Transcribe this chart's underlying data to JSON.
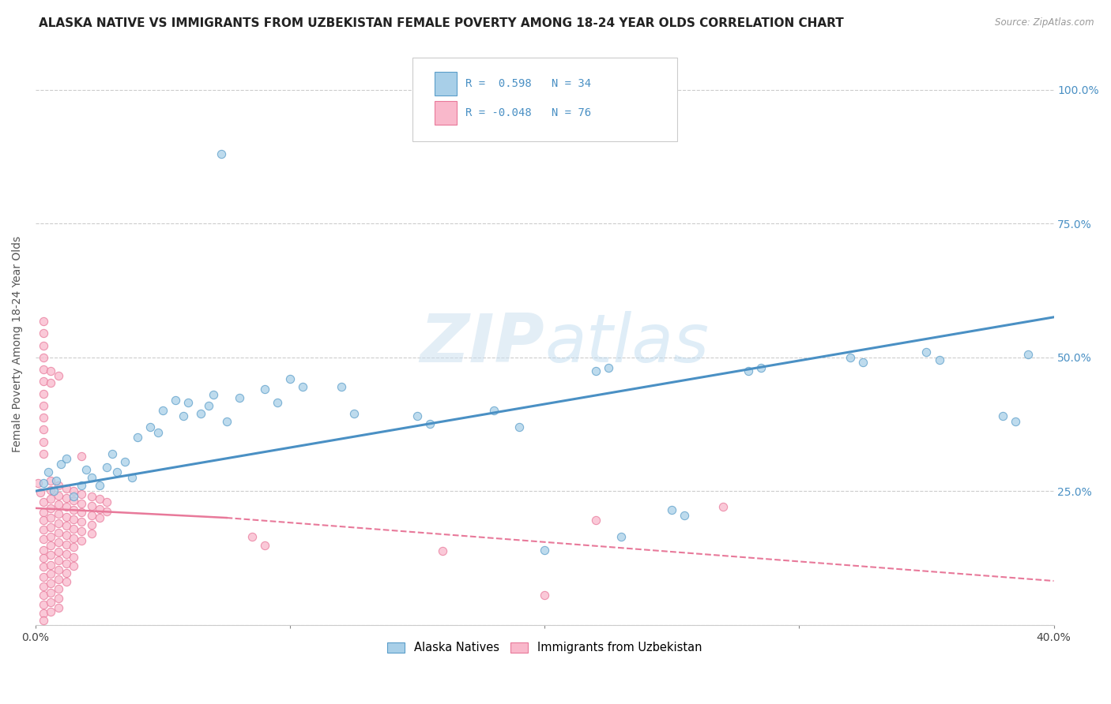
{
  "title": "ALASKA NATIVE VS IMMIGRANTS FROM UZBEKISTAN FEMALE POVERTY AMONG 18-24 YEAR OLDS CORRELATION CHART",
  "source": "Source: ZipAtlas.com",
  "ylabel": "Female Poverty Among 18-24 Year Olds",
  "xlim": [
    0.0,
    0.4
  ],
  "ylim": [
    0.0,
    1.05
  ],
  "yticks": [
    0.0,
    0.25,
    0.5,
    0.75,
    1.0
  ],
  "ytick_labels": [
    "",
    "25.0%",
    "50.0%",
    "75.0%",
    "100.0%"
  ],
  "xticks": [
    0.0,
    0.1,
    0.2,
    0.3,
    0.4
  ],
  "xtick_labels": [
    "0.0%",
    "",
    "",
    "",
    "40.0%"
  ],
  "legend_label1": "Alaska Natives",
  "legend_label2": "Immigrants from Uzbekistan",
  "color_blue": "#a8cfe8",
  "color_pink": "#f9b8cb",
  "color_blue_edge": "#5b9ec9",
  "color_pink_edge": "#e8799a",
  "color_blue_line": "#4a90c4",
  "color_pink_line": "#e8799a",
  "color_blue_text": "#4a90c4",
  "blue_scatter": [
    [
      0.003,
      0.265
    ],
    [
      0.005,
      0.285
    ],
    [
      0.007,
      0.25
    ],
    [
      0.008,
      0.27
    ],
    [
      0.01,
      0.3
    ],
    [
      0.012,
      0.31
    ],
    [
      0.015,
      0.24
    ],
    [
      0.018,
      0.26
    ],
    [
      0.02,
      0.29
    ],
    [
      0.022,
      0.275
    ],
    [
      0.025,
      0.26
    ],
    [
      0.028,
      0.295
    ],
    [
      0.03,
      0.32
    ],
    [
      0.032,
      0.285
    ],
    [
      0.035,
      0.305
    ],
    [
      0.038,
      0.275
    ],
    [
      0.04,
      0.35
    ],
    [
      0.045,
      0.37
    ],
    [
      0.048,
      0.36
    ],
    [
      0.05,
      0.4
    ],
    [
      0.055,
      0.42
    ],
    [
      0.058,
      0.39
    ],
    [
      0.06,
      0.415
    ],
    [
      0.065,
      0.395
    ],
    [
      0.068,
      0.41
    ],
    [
      0.07,
      0.43
    ],
    [
      0.075,
      0.38
    ],
    [
      0.08,
      0.425
    ],
    [
      0.09,
      0.44
    ],
    [
      0.095,
      0.415
    ],
    [
      0.1,
      0.46
    ],
    [
      0.105,
      0.445
    ],
    [
      0.12,
      0.445
    ],
    [
      0.125,
      0.395
    ],
    [
      0.15,
      0.39
    ],
    [
      0.155,
      0.375
    ],
    [
      0.18,
      0.4
    ],
    [
      0.19,
      0.37
    ],
    [
      0.22,
      0.475
    ],
    [
      0.225,
      0.48
    ],
    [
      0.25,
      0.215
    ],
    [
      0.255,
      0.205
    ],
    [
      0.28,
      0.475
    ],
    [
      0.285,
      0.48
    ],
    [
      0.32,
      0.5
    ],
    [
      0.325,
      0.49
    ],
    [
      0.35,
      0.51
    ],
    [
      0.355,
      0.495
    ],
    [
      0.38,
      0.39
    ],
    [
      0.385,
      0.38
    ],
    [
      0.39,
      0.505
    ],
    [
      0.073,
      0.88
    ],
    [
      0.2,
      0.14
    ],
    [
      0.23,
      0.165
    ]
  ],
  "pink_scatter": [
    [
      0.001,
      0.265
    ],
    [
      0.002,
      0.248
    ],
    [
      0.003,
      0.23
    ],
    [
      0.003,
      0.21
    ],
    [
      0.003,
      0.195
    ],
    [
      0.003,
      0.178
    ],
    [
      0.003,
      0.16
    ],
    [
      0.003,
      0.14
    ],
    [
      0.003,
      0.125
    ],
    [
      0.003,
      0.108
    ],
    [
      0.003,
      0.09
    ],
    [
      0.003,
      0.072
    ],
    [
      0.003,
      0.055
    ],
    [
      0.003,
      0.038
    ],
    [
      0.003,
      0.022
    ],
    [
      0.003,
      0.008
    ],
    [
      0.006,
      0.27
    ],
    [
      0.006,
      0.252
    ],
    [
      0.006,
      0.235
    ],
    [
      0.006,
      0.218
    ],
    [
      0.006,
      0.2
    ],
    [
      0.006,
      0.183
    ],
    [
      0.006,
      0.165
    ],
    [
      0.006,
      0.148
    ],
    [
      0.006,
      0.13
    ],
    [
      0.006,
      0.112
    ],
    [
      0.006,
      0.095
    ],
    [
      0.006,
      0.078
    ],
    [
      0.006,
      0.06
    ],
    [
      0.006,
      0.042
    ],
    [
      0.006,
      0.025
    ],
    [
      0.009,
      0.26
    ],
    [
      0.009,
      0.242
    ],
    [
      0.009,
      0.225
    ],
    [
      0.009,
      0.207
    ],
    [
      0.009,
      0.19
    ],
    [
      0.009,
      0.172
    ],
    [
      0.009,
      0.155
    ],
    [
      0.009,
      0.137
    ],
    [
      0.009,
      0.12
    ],
    [
      0.009,
      0.102
    ],
    [
      0.009,
      0.085
    ],
    [
      0.009,
      0.067
    ],
    [
      0.009,
      0.05
    ],
    [
      0.009,
      0.032
    ],
    [
      0.012,
      0.255
    ],
    [
      0.012,
      0.237
    ],
    [
      0.012,
      0.22
    ],
    [
      0.012,
      0.202
    ],
    [
      0.012,
      0.185
    ],
    [
      0.012,
      0.167
    ],
    [
      0.012,
      0.15
    ],
    [
      0.012,
      0.132
    ],
    [
      0.012,
      0.115
    ],
    [
      0.012,
      0.097
    ],
    [
      0.012,
      0.08
    ],
    [
      0.015,
      0.25
    ],
    [
      0.015,
      0.232
    ],
    [
      0.015,
      0.215
    ],
    [
      0.015,
      0.197
    ],
    [
      0.015,
      0.18
    ],
    [
      0.015,
      0.162
    ],
    [
      0.015,
      0.145
    ],
    [
      0.015,
      0.127
    ],
    [
      0.015,
      0.11
    ],
    [
      0.018,
      0.245
    ],
    [
      0.018,
      0.227
    ],
    [
      0.018,
      0.21
    ],
    [
      0.018,
      0.192
    ],
    [
      0.018,
      0.175
    ],
    [
      0.018,
      0.157
    ],
    [
      0.022,
      0.24
    ],
    [
      0.022,
      0.222
    ],
    [
      0.022,
      0.205
    ],
    [
      0.022,
      0.187
    ],
    [
      0.022,
      0.17
    ],
    [
      0.025,
      0.235
    ],
    [
      0.025,
      0.217
    ],
    [
      0.025,
      0.2
    ],
    [
      0.028,
      0.23
    ],
    [
      0.028,
      0.212
    ],
    [
      0.003,
      0.568
    ],
    [
      0.003,
      0.545
    ],
    [
      0.003,
      0.522
    ],
    [
      0.003,
      0.5
    ],
    [
      0.003,
      0.478
    ],
    [
      0.003,
      0.455
    ],
    [
      0.003,
      0.432
    ],
    [
      0.003,
      0.41
    ],
    [
      0.003,
      0.388
    ],
    [
      0.003,
      0.365
    ],
    [
      0.003,
      0.342
    ],
    [
      0.003,
      0.32
    ],
    [
      0.006,
      0.475
    ],
    [
      0.006,
      0.452
    ],
    [
      0.009,
      0.465
    ],
    [
      0.018,
      0.315
    ],
    [
      0.085,
      0.165
    ],
    [
      0.09,
      0.148
    ],
    [
      0.16,
      0.138
    ],
    [
      0.2,
      0.055
    ],
    [
      0.22,
      0.195
    ],
    [
      0.27,
      0.22
    ]
  ],
  "blue_line": [
    [
      0.0,
      0.25
    ],
    [
      0.4,
      0.575
    ]
  ],
  "pink_line_solid": [
    [
      0.0,
      0.218
    ],
    [
      0.075,
      0.2
    ]
  ],
  "pink_line_dash": [
    [
      0.075,
      0.2
    ],
    [
      0.4,
      0.082
    ]
  ],
  "background_color": "#ffffff",
  "grid_color": "#cccccc",
  "title_fontsize": 11,
  "label_fontsize": 10,
  "tick_fontsize": 10,
  "right_tick_color": "#4a90c4"
}
